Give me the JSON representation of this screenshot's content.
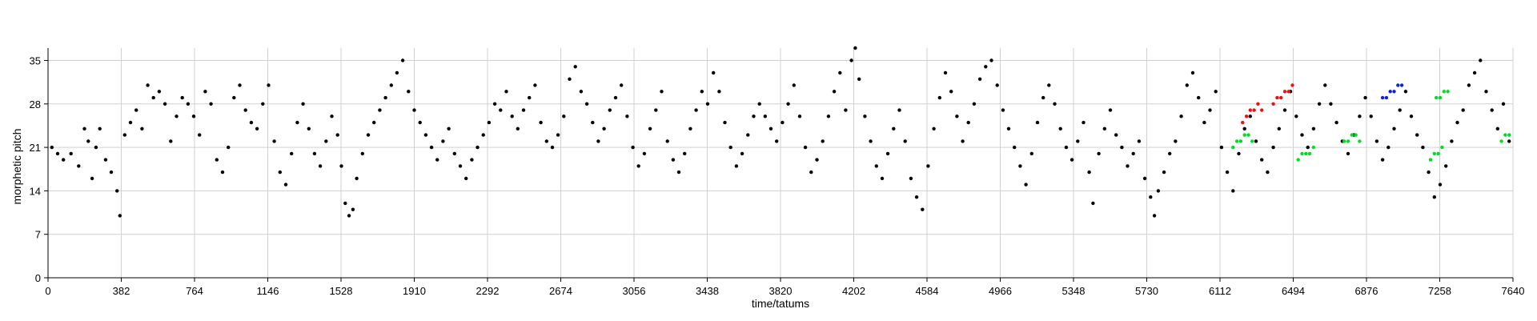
{
  "chart_data": {
    "type": "scatter",
    "xlabel": "time/tatums",
    "ylabel": "morphetic pitch",
    "xlim": [
      0,
      7640
    ],
    "ylim": [
      0,
      37
    ],
    "xticks": [
      0,
      382,
      764,
      1146,
      1528,
      1910,
      2292,
      2674,
      3056,
      3438,
      3820,
      4202,
      4584,
      4966,
      5348,
      5730,
      6112,
      6494,
      6876,
      7258,
      7640
    ],
    "yticks": [
      0,
      7,
      14,
      21,
      28,
      35
    ],
    "grid": true,
    "series": [
      {
        "color": "#000000",
        "points": [
          [
            20,
            21
          ],
          [
            50,
            20
          ],
          [
            80,
            19
          ],
          [
            120,
            20
          ],
          [
            160,
            18
          ],
          [
            190,
            24
          ],
          [
            210,
            22
          ],
          [
            230,
            16
          ],
          [
            250,
            21
          ],
          [
            270,
            24
          ],
          [
            300,
            19
          ],
          [
            330,
            17
          ],
          [
            360,
            14
          ],
          [
            375,
            10
          ],
          [
            400,
            23
          ],
          [
            430,
            25
          ],
          [
            460,
            27
          ],
          [
            490,
            24
          ],
          [
            520,
            31
          ],
          [
            550,
            29
          ],
          [
            580,
            30
          ],
          [
            610,
            28
          ],
          [
            640,
            22
          ],
          [
            670,
            26
          ],
          [
            700,
            29
          ],
          [
            730,
            28
          ],
          [
            760,
            26
          ],
          [
            790,
            23
          ],
          [
            820,
            30
          ],
          [
            850,
            28
          ],
          [
            880,
            19
          ],
          [
            910,
            17
          ],
          [
            940,
            21
          ],
          [
            970,
            29
          ],
          [
            1000,
            31
          ],
          [
            1030,
            27
          ],
          [
            1060,
            25
          ],
          [
            1090,
            24
          ],
          [
            1120,
            28
          ],
          [
            1150,
            31
          ],
          [
            1180,
            22
          ],
          [
            1210,
            17
          ],
          [
            1240,
            15
          ],
          [
            1270,
            20
          ],
          [
            1300,
            25
          ],
          [
            1330,
            28
          ],
          [
            1360,
            24
          ],
          [
            1390,
            20
          ],
          [
            1420,
            18
          ],
          [
            1450,
            22
          ],
          [
            1480,
            26
          ],
          [
            1510,
            23
          ],
          [
            1530,
            18
          ],
          [
            1550,
            12
          ],
          [
            1570,
            10
          ],
          [
            1590,
            11
          ],
          [
            1610,
            16
          ],
          [
            1640,
            20
          ],
          [
            1670,
            23
          ],
          [
            1700,
            25
          ],
          [
            1730,
            27
          ],
          [
            1760,
            29
          ],
          [
            1790,
            31
          ],
          [
            1820,
            33
          ],
          [
            1850,
            35
          ],
          [
            1880,
            30
          ],
          [
            1910,
            27
          ],
          [
            1940,
            25
          ],
          [
            1970,
            23
          ],
          [
            2000,
            21
          ],
          [
            2030,
            19
          ],
          [
            2060,
            22
          ],
          [
            2090,
            24
          ],
          [
            2120,
            20
          ],
          [
            2150,
            18
          ],
          [
            2180,
            16
          ],
          [
            2210,
            19
          ],
          [
            2240,
            21
          ],
          [
            2270,
            23
          ],
          [
            2300,
            25
          ],
          [
            2330,
            28
          ],
          [
            2360,
            27
          ],
          [
            2390,
            30
          ],
          [
            2420,
            26
          ],
          [
            2450,
            24
          ],
          [
            2480,
            27
          ],
          [
            2510,
            29
          ],
          [
            2540,
            31
          ],
          [
            2570,
            25
          ],
          [
            2600,
            22
          ],
          [
            2630,
            21
          ],
          [
            2660,
            23
          ],
          [
            2690,
            26
          ],
          [
            2720,
            32
          ],
          [
            2750,
            34
          ],
          [
            2780,
            30
          ],
          [
            2810,
            28
          ],
          [
            2840,
            25
          ],
          [
            2870,
            22
          ],
          [
            2900,
            24
          ],
          [
            2930,
            27
          ],
          [
            2960,
            29
          ],
          [
            2990,
            31
          ],
          [
            3020,
            26
          ],
          [
            3050,
            21
          ],
          [
            3080,
            18
          ],
          [
            3110,
            20
          ],
          [
            3140,
            24
          ],
          [
            3170,
            27
          ],
          [
            3200,
            30
          ],
          [
            3230,
            22
          ],
          [
            3260,
            19
          ],
          [
            3290,
            17
          ],
          [
            3320,
            20
          ],
          [
            3350,
            24
          ],
          [
            3380,
            27
          ],
          [
            3410,
            30
          ],
          [
            3440,
            28
          ],
          [
            3470,
            33
          ],
          [
            3500,
            30
          ],
          [
            3530,
            25
          ],
          [
            3560,
            21
          ],
          [
            3590,
            18
          ],
          [
            3620,
            20
          ],
          [
            3650,
            23
          ],
          [
            3680,
            26
          ],
          [
            3710,
            28
          ],
          [
            3740,
            26
          ],
          [
            3770,
            24
          ],
          [
            3800,
            22
          ],
          [
            3830,
            25
          ],
          [
            3860,
            28
          ],
          [
            3890,
            31
          ],
          [
            3920,
            26
          ],
          [
            3950,
            21
          ],
          [
            3980,
            17
          ],
          [
            4010,
            19
          ],
          [
            4040,
            22
          ],
          [
            4070,
            26
          ],
          [
            4100,
            30
          ],
          [
            4130,
            33
          ],
          [
            4160,
            27
          ],
          [
            4190,
            35
          ],
          [
            4210,
            37
          ],
          [
            4230,
            32
          ],
          [
            4260,
            26
          ],
          [
            4290,
            22
          ],
          [
            4320,
            18
          ],
          [
            4350,
            16
          ],
          [
            4380,
            20
          ],
          [
            4410,
            24
          ],
          [
            4440,
            27
          ],
          [
            4470,
            22
          ],
          [
            4500,
            16
          ],
          [
            4530,
            13
          ],
          [
            4560,
            11
          ],
          [
            4590,
            18
          ],
          [
            4620,
            24
          ],
          [
            4650,
            29
          ],
          [
            4680,
            33
          ],
          [
            4710,
            30
          ],
          [
            4740,
            26
          ],
          [
            4770,
            22
          ],
          [
            4800,
            25
          ],
          [
            4830,
            28
          ],
          [
            4860,
            32
          ],
          [
            4890,
            34
          ],
          [
            4920,
            35
          ],
          [
            4950,
            31
          ],
          [
            4980,
            27
          ],
          [
            5010,
            24
          ],
          [
            5040,
            21
          ],
          [
            5070,
            18
          ],
          [
            5100,
            15
          ],
          [
            5130,
            20
          ],
          [
            5160,
            25
          ],
          [
            5190,
            29
          ],
          [
            5220,
            31
          ],
          [
            5250,
            28
          ],
          [
            5280,
            24
          ],
          [
            5310,
            21
          ],
          [
            5340,
            19
          ],
          [
            5370,
            22
          ],
          [
            5400,
            25
          ],
          [
            5430,
            17
          ],
          [
            5450,
            12
          ],
          [
            5480,
            20
          ],
          [
            5510,
            24
          ],
          [
            5540,
            27
          ],
          [
            5570,
            23
          ],
          [
            5600,
            21
          ],
          [
            5630,
            18
          ],
          [
            5660,
            20
          ],
          [
            5690,
            22
          ],
          [
            5720,
            16
          ],
          [
            5750,
            13
          ],
          [
            5770,
            10
          ],
          [
            5790,
            14
          ],
          [
            5820,
            17
          ],
          [
            5850,
            20
          ],
          [
            5880,
            22
          ],
          [
            5910,
            26
          ],
          [
            5940,
            31
          ],
          [
            5970,
            33
          ],
          [
            6000,
            29
          ],
          [
            6030,
            25
          ],
          [
            6060,
            27
          ],
          [
            6090,
            30
          ],
          [
            6120,
            21
          ],
          [
            6150,
            17
          ],
          [
            6180,
            14
          ],
          [
            6210,
            20
          ],
          [
            6240,
            24
          ],
          [
            6270,
            26
          ],
          [
            6300,
            22
          ],
          [
            6330,
            19
          ],
          [
            6360,
            17
          ],
          [
            6390,
            21
          ],
          [
            6420,
            24
          ],
          [
            6450,
            27
          ],
          [
            6480,
            30
          ],
          [
            6510,
            26
          ],
          [
            6540,
            23
          ],
          [
            6570,
            21
          ],
          [
            6600,
            24
          ],
          [
            6630,
            28
          ],
          [
            6660,
            31
          ],
          [
            6690,
            28
          ],
          [
            6720,
            25
          ],
          [
            6750,
            22
          ],
          [
            6780,
            20
          ],
          [
            6810,
            23
          ],
          [
            6840,
            26
          ],
          [
            6870,
            29
          ],
          [
            6900,
            26
          ],
          [
            6930,
            22
          ],
          [
            6960,
            19
          ],
          [
            6990,
            21
          ],
          [
            7020,
            24
          ],
          [
            7050,
            27
          ],
          [
            7080,
            30
          ],
          [
            7110,
            26
          ],
          [
            7140,
            23
          ],
          [
            7170,
            21
          ],
          [
            7200,
            17
          ],
          [
            7230,
            13
          ],
          [
            7260,
            15
          ],
          [
            7290,
            18
          ],
          [
            7320,
            22
          ],
          [
            7350,
            25
          ],
          [
            7380,
            27
          ],
          [
            7410,
            31
          ],
          [
            7440,
            33
          ],
          [
            7470,
            35
          ],
          [
            7500,
            30
          ],
          [
            7530,
            27
          ],
          [
            7560,
            24
          ],
          [
            7590,
            28
          ],
          [
            7620,
            22
          ]
        ]
      },
      {
        "color": "#00dd22",
        "points": [
          [
            6180,
            21
          ],
          [
            6200,
            22
          ],
          [
            6220,
            22
          ],
          [
            6240,
            23
          ],
          [
            6260,
            23
          ],
          [
            6280,
            22
          ],
          [
            6520,
            19
          ],
          [
            6540,
            20
          ],
          [
            6560,
            20
          ],
          [
            6580,
            20
          ],
          [
            6600,
            21
          ],
          [
            6760,
            22
          ],
          [
            6780,
            22
          ],
          [
            6800,
            23
          ],
          [
            6820,
            23
          ],
          [
            6840,
            22
          ],
          [
            7210,
            19
          ],
          [
            7230,
            20
          ],
          [
            7250,
            20
          ],
          [
            7270,
            21
          ],
          [
            7240,
            29
          ],
          [
            7260,
            29
          ],
          [
            7280,
            30
          ],
          [
            7300,
            30
          ],
          [
            7580,
            22
          ],
          [
            7600,
            23
          ],
          [
            7620,
            23
          ]
        ]
      },
      {
        "color": "#ee1111",
        "points": [
          [
            6230,
            25
          ],
          [
            6250,
            26
          ],
          [
            6270,
            27
          ],
          [
            6290,
            27
          ],
          [
            6310,
            28
          ],
          [
            6330,
            27
          ],
          [
            6390,
            28
          ],
          [
            6410,
            29
          ],
          [
            6430,
            29
          ],
          [
            6450,
            30
          ],
          [
            6470,
            30
          ],
          [
            6490,
            31
          ]
        ]
      },
      {
        "color": "#1122dd",
        "points": [
          [
            6960,
            29
          ],
          [
            6980,
            29
          ],
          [
            7000,
            30
          ],
          [
            7020,
            30
          ],
          [
            7040,
            31
          ],
          [
            7060,
            31
          ]
        ]
      }
    ]
  }
}
